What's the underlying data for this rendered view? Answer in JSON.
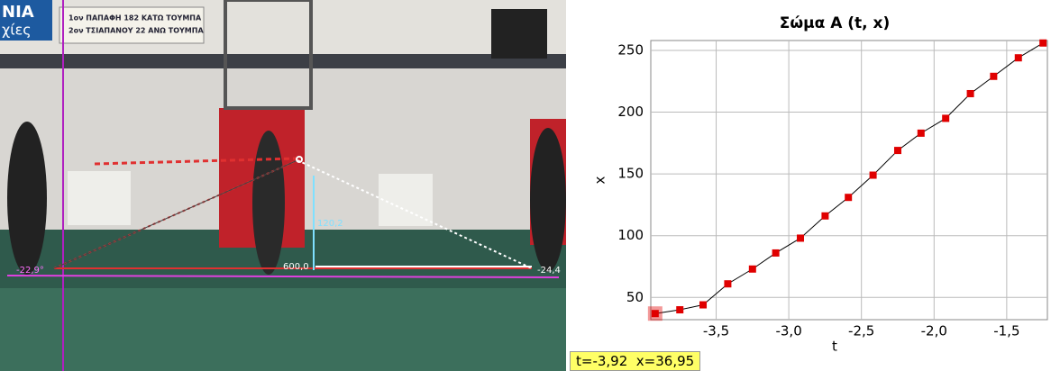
{
  "video": {
    "banner_left": [
      "ΝΙΑ",
      "χίες"
    ],
    "banner_lines": [
      "1ον ΠΑΠΑΦΗ 182 ΚΑΤΩ ΤΟΥΜΠΑ",
      "2ον ΤΣΙΑΠΑΝΟΥ 22 ΑΝΩ ΤΟΥΜΠΑ"
    ],
    "height_label": "120,2",
    "length_label": "600,0",
    "angle_left": "-22,9°",
    "angle_right": "-24,4"
  },
  "chart_data": {
    "type": "line",
    "title": "Σώμα A (t, x)",
    "x_label": "t",
    "y_label": "x",
    "x": [
      -3.92,
      -3.75,
      -3.59,
      -3.42,
      -3.25,
      -3.09,
      -2.92,
      -2.75,
      -2.59,
      -2.42,
      -2.25,
      -2.09,
      -1.92,
      -1.75,
      -1.59,
      -1.42,
      -1.25
    ],
    "series": [
      {
        "name": "x",
        "color": "#e00000",
        "values": [
          36.95,
          40,
          44,
          61,
          73,
          86,
          98,
          116,
          131,
          149,
          169,
          183,
          195,
          215,
          229,
          244,
          256
        ]
      }
    ],
    "xlim": [
      -3.95,
      -1.22
    ],
    "ylim": [
      32,
      258
    ],
    "xticks": [
      {
        "value": -3.5,
        "label": "-3,5"
      },
      {
        "value": -3.0,
        "label": "-3,0"
      },
      {
        "value": -2.5,
        "label": "-2,5"
      },
      {
        "value": -2.0,
        "label": "-2,0"
      },
      {
        "value": -1.5,
        "label": "-1,5"
      }
    ],
    "yticks": [
      50,
      100,
      150,
      200,
      250
    ],
    "grid": true
  },
  "readout": "t=-3,92  x=36,95"
}
